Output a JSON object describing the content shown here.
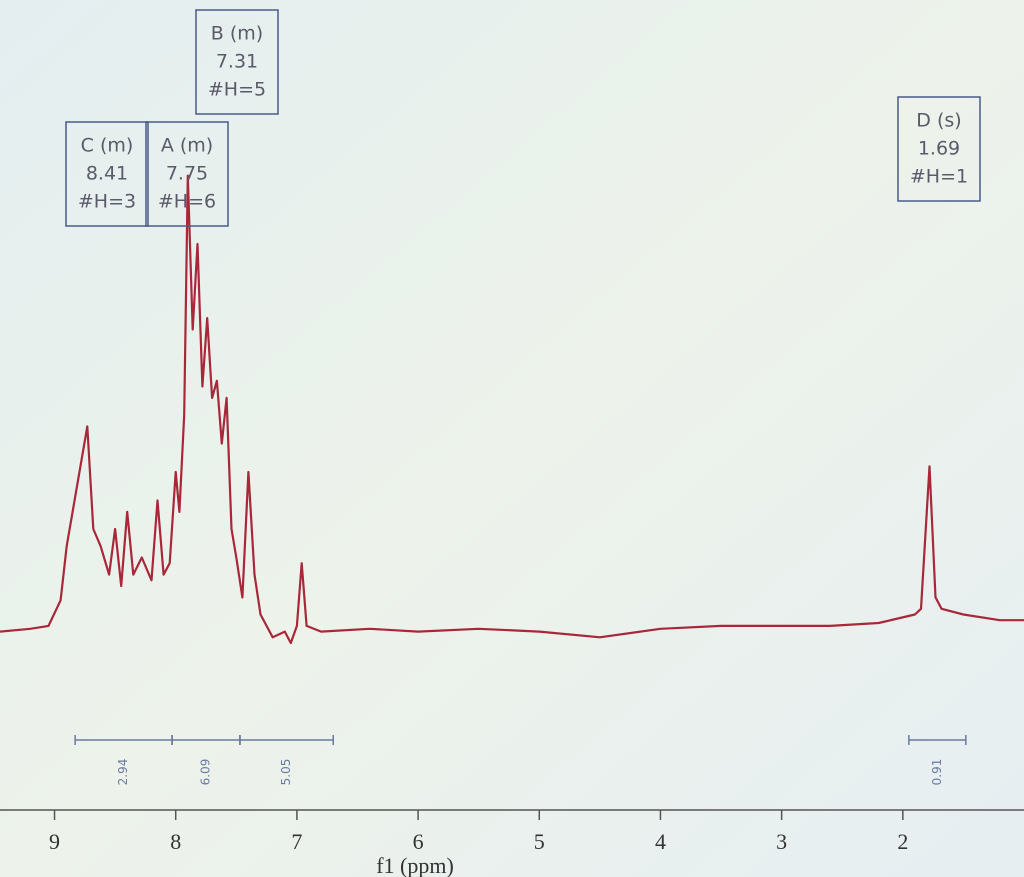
{
  "chart_data": {
    "type": "line",
    "xlabel": "f1 (ppm)",
    "xlim": [
      9.45,
      1.0
    ],
    "xticks": [
      9,
      8,
      7,
      6,
      5,
      4,
      3,
      2
    ],
    "ylim": [
      0,
      100
    ],
    "x": [
      9.45,
      9.2,
      9.05,
      8.95,
      8.9,
      8.73,
      8.68,
      8.62,
      8.55,
      8.5,
      8.45,
      8.4,
      8.35,
      8.28,
      8.2,
      8.15,
      8.1,
      8.05,
      8.0,
      7.97,
      7.93,
      7.9,
      7.86,
      7.82,
      7.78,
      7.74,
      7.7,
      7.66,
      7.62,
      7.58,
      7.54,
      7.5,
      7.45,
      7.4,
      7.35,
      7.3,
      7.2,
      7.1,
      7.05,
      7.0,
      6.96,
      6.92,
      6.8,
      6.4,
      6.0,
      5.5,
      5.0,
      4.5,
      4.0,
      3.5,
      3.0,
      2.6,
      2.2,
      1.9,
      1.85,
      1.78,
      1.73,
      1.68,
      1.5,
      1.2,
      1.0
    ],
    "series": [
      {
        "color": "#a8283a",
        "values": [
          12,
          12.5,
          13,
          17.5,
          27,
          48,
          30,
          27,
          22,
          30,
          20,
          33,
          22,
          25,
          21,
          35,
          22,
          24,
          40,
          33,
          50,
          92,
          65,
          80,
          55,
          67,
          53,
          56,
          45,
          53,
          30,
          25,
          18,
          40,
          22,
          15,
          11,
          12,
          10,
          13,
          24,
          13,
          12,
          12.5,
          12,
          12.5,
          12,
          11,
          12.5,
          13,
          13,
          13,
          13.5,
          15,
          16,
          41,
          18,
          16,
          15,
          14,
          14
        ]
      }
    ],
    "peaks": [
      {
        "label": "C (m)",
        "shift": 8.41,
        "count": "#H=3"
      },
      {
        "label": "A (m)",
        "shift": 7.75,
        "count": "#H=6"
      },
      {
        "label": "B (m)",
        "shift": 7.31,
        "count": "#H=5"
      },
      {
        "label": "D (s)",
        "shift": 1.69,
        "count": "#H=1"
      }
    ],
    "integrals": [
      {
        "value": 2.94,
        "range": [
          8.83,
          8.03
        ]
      },
      {
        "value": 6.09,
        "range": [
          8.03,
          7.47
        ]
      },
      {
        "value": 5.05,
        "range": [
          7.47,
          6.7
        ]
      },
      {
        "value": 0.91,
        "range": [
          1.95,
          1.48
        ]
      }
    ]
  }
}
